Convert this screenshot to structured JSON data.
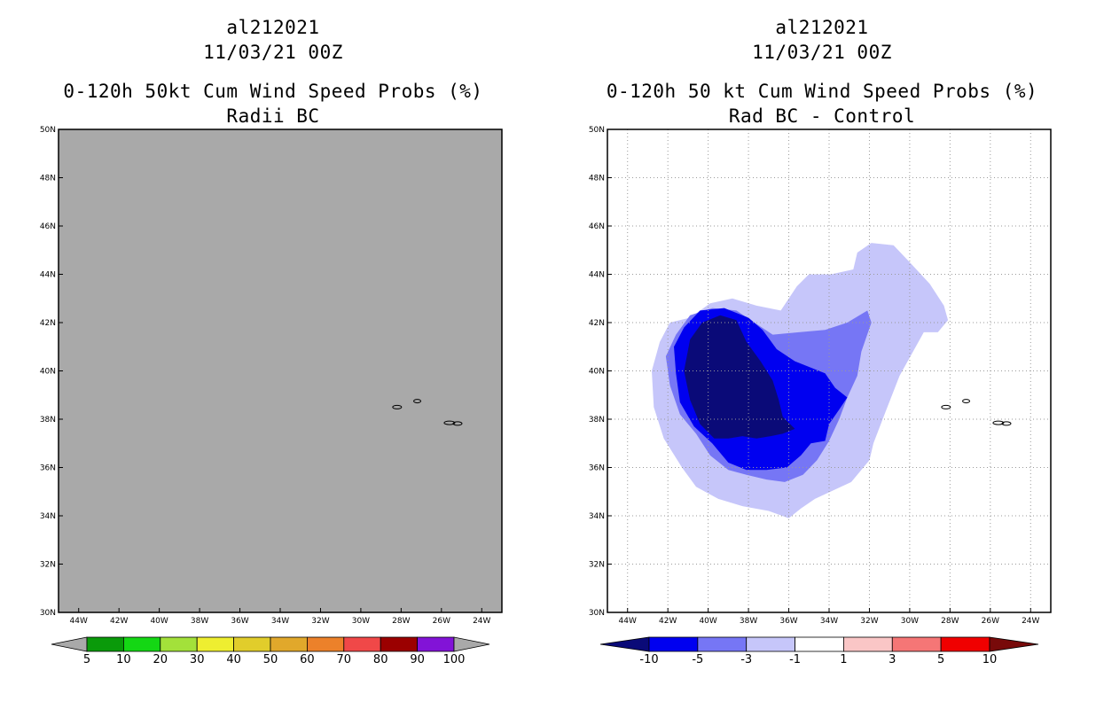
{
  "chart_data": [
    {
      "type": "heatmap",
      "storm_id": "al212021",
      "datetime": "11/03/21 00Z",
      "title": "0-120h 50kt Cum Wind Speed Probs (%)",
      "subtitle": "Radii BC",
      "lon_range": [
        -45,
        -23
      ],
      "lat_range": [
        30,
        50
      ],
      "x_ticks": [
        "44W",
        "42W",
        "40W",
        "38W",
        "36W",
        "34W",
        "32W",
        "30W",
        "28W",
        "26W",
        "24W"
      ],
      "y_ticks": [
        "30N",
        "32N",
        "34N",
        "36N",
        "38N",
        "40N",
        "42N",
        "44N",
        "46N",
        "48N",
        "50N"
      ],
      "grid": false,
      "field_note": "entire domain below 5% (shaded grey)",
      "background_color": "#a9a9a9",
      "colorbar": {
        "labels": [
          "5",
          "10",
          "20",
          "30",
          "40",
          "50",
          "60",
          "70",
          "80",
          "90",
          "100"
        ],
        "colors": [
          "#0a9a0a",
          "#14d714",
          "#a3e13a",
          "#eeee30",
          "#e1cd2b",
          "#e1a82b",
          "#ec812a",
          "#f04848",
          "#9b0000",
          "#8213d7"
        ],
        "end_color": "#a9a9a9"
      }
    },
    {
      "type": "heatmap",
      "storm_id": "al212021",
      "datetime": "11/03/21 00Z",
      "title": "0-120h 50 kt Cum Wind Speed Probs (%)",
      "subtitle": "Rad BC - Control",
      "lon_range": [
        -45,
        -23
      ],
      "lat_range": [
        30,
        50
      ],
      "x_ticks": [
        "44W",
        "42W",
        "40W",
        "38W",
        "36W",
        "34W",
        "32W",
        "30W",
        "28W",
        "26W",
        "24W"
      ],
      "y_ticks": [
        "30N",
        "32N",
        "34N",
        "36N",
        "38N",
        "40N",
        "42N",
        "44N",
        "46N",
        "48N",
        "50N"
      ],
      "grid": true,
      "colorbar": {
        "labels": [
          "-10",
          "-5",
          "-3",
          "-1",
          "1",
          "3",
          "5",
          "10"
        ],
        "colors": [
          "#0a0a78",
          "#0000f0",
          "#7676f5",
          "#c6c6fa",
          "#ffffff",
          "#fac6c6",
          "#f57676",
          "#f00000",
          "#780a0a"
        ]
      },
      "contours": [
        {
          "level": "-3 to -1",
          "color": "#c6c6fa",
          "points": [
            [
              -40.9,
              42.2
            ],
            [
              -39.9,
              42.8
            ],
            [
              -38.8,
              43.0
            ],
            [
              -37.6,
              42.7
            ],
            [
              -36.4,
              42.5
            ],
            [
              -35.6,
              43.5
            ],
            [
              -35.0,
              44.0
            ],
            [
              -33.9,
              44.0
            ],
            [
              -32.8,
              44.2
            ],
            [
              -32.6,
              44.9
            ],
            [
              -31.9,
              45.3
            ],
            [
              -30.8,
              45.2
            ],
            [
              -30.0,
              44.5
            ],
            [
              -29.0,
              43.6
            ],
            [
              -28.3,
              42.7
            ],
            [
              -28.1,
              42.1
            ],
            [
              -28.6,
              41.6
            ],
            [
              -29.3,
              41.6
            ],
            [
              -29.9,
              40.7
            ],
            [
              -30.5,
              39.8
            ],
            [
              -31.2,
              38.3
            ],
            [
              -31.8,
              37.0
            ],
            [
              -32.0,
              36.3
            ],
            [
              -32.9,
              35.4
            ],
            [
              -34.7,
              34.7
            ],
            [
              -35.4,
              34.3
            ],
            [
              -36.0,
              33.9
            ],
            [
              -37.0,
              34.2
            ],
            [
              -38.3,
              34.4
            ],
            [
              -39.5,
              34.7
            ],
            [
              -40.6,
              35.2
            ],
            [
              -41.3,
              36.0
            ],
            [
              -42.2,
              37.2
            ],
            [
              -42.7,
              38.5
            ],
            [
              -42.8,
              40.0
            ],
            [
              -42.4,
              41.2
            ],
            [
              -41.9,
              42.0
            ]
          ]
        },
        {
          "level": "-5 to -3",
          "color": "#7676f5",
          "points": [
            [
              -41.6,
              41.5
            ],
            [
              -40.9,
              42.3
            ],
            [
              -39.8,
              42.6
            ],
            [
              -38.6,
              42.5
            ],
            [
              -37.7,
              42.0
            ],
            [
              -36.8,
              41.5
            ],
            [
              -35.5,
              41.6
            ],
            [
              -34.2,
              41.7
            ],
            [
              -33.1,
              42.0
            ],
            [
              -32.1,
              42.5
            ],
            [
              -31.9,
              42.0
            ],
            [
              -32.4,
              40.8
            ],
            [
              -32.6,
              39.8
            ],
            [
              -33.1,
              38.9
            ],
            [
              -33.5,
              38.0
            ],
            [
              -34.0,
              37.1
            ],
            [
              -34.6,
              36.3
            ],
            [
              -35.3,
              35.7
            ],
            [
              -36.2,
              35.4
            ],
            [
              -37.1,
              35.5
            ],
            [
              -38.1,
              35.7
            ],
            [
              -39.0,
              35.9
            ],
            [
              -39.9,
              36.5
            ],
            [
              -40.6,
              37.4
            ],
            [
              -41.4,
              38.2
            ],
            [
              -41.9,
              39.4
            ],
            [
              -42.1,
              40.6
            ]
          ]
        },
        {
          "level": "-10 to -5",
          "color": "#0000f0",
          "points": [
            [
              -41.2,
              41.8
            ],
            [
              -40.4,
              42.5
            ],
            [
              -39.2,
              42.6
            ],
            [
              -38.0,
              42.2
            ],
            [
              -37.3,
              41.7
            ],
            [
              -36.6,
              40.9
            ],
            [
              -35.7,
              40.4
            ],
            [
              -34.8,
              40.1
            ],
            [
              -34.2,
              39.9
            ],
            [
              -33.7,
              39.3
            ],
            [
              -33.1,
              38.9
            ],
            [
              -33.5,
              38.4
            ],
            [
              -34.0,
              37.8
            ],
            [
              -34.2,
              37.1
            ],
            [
              -34.9,
              37.0
            ],
            [
              -35.4,
              36.5
            ],
            [
              -36.1,
              36.0
            ],
            [
              -37.1,
              35.9
            ],
            [
              -38.1,
              35.9
            ],
            [
              -39.0,
              36.2
            ],
            [
              -39.8,
              37.0
            ],
            [
              -40.7,
              37.7
            ],
            [
              -41.4,
              38.7
            ],
            [
              -41.6,
              39.9
            ],
            [
              -41.7,
              41.0
            ]
          ]
        },
        {
          "level": "< -10",
          "color": "#0a0a78",
          "points": [
            [
              -40.9,
              41.3
            ],
            [
              -40.3,
              42.0
            ],
            [
              -39.4,
              42.3
            ],
            [
              -38.6,
              42.1
            ],
            [
              -38.1,
              41.2
            ],
            [
              -37.4,
              40.4
            ],
            [
              -36.8,
              39.6
            ],
            [
              -36.5,
              38.8
            ],
            [
              -36.3,
              38.1
            ],
            [
              -35.7,
              37.6
            ],
            [
              -36.3,
              37.4
            ],
            [
              -36.9,
              37.3
            ],
            [
              -37.6,
              37.2
            ],
            [
              -38.3,
              37.3
            ],
            [
              -39.0,
              37.2
            ],
            [
              -39.7,
              37.2
            ],
            [
              -40.4,
              37.8
            ],
            [
              -40.9,
              38.8
            ],
            [
              -41.2,
              40.0
            ]
          ]
        }
      ]
    }
  ]
}
